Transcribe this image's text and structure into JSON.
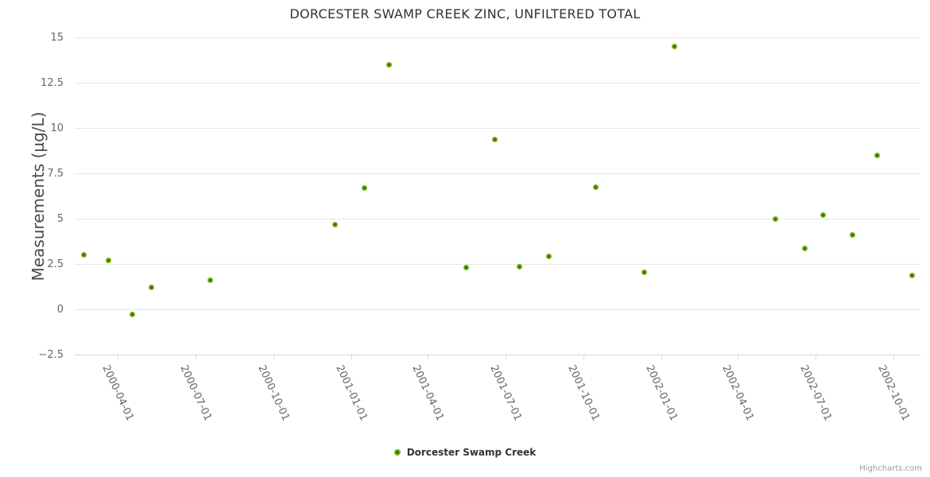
{
  "title": "DORCESTER SWAMP CREEK ZINC, UNFILTERED TOTAL",
  "credits": "Highcharts.com",
  "chart_data": {
    "type": "scatter",
    "title": "DORCESTER SWAMP CREEK ZINC, UNFILTERED TOTAL",
    "xlabel": "",
    "ylabel": "Measurements (µg/L)",
    "grid": "horizontal",
    "legend_position": "bottom-center",
    "ylim": [
      -2.5,
      15
    ],
    "yticks": [
      -2.5,
      0,
      2.5,
      5,
      7.5,
      10,
      12.5,
      15
    ],
    "ytick_labels": [
      "−2.5",
      "0",
      "2.5",
      "5",
      "7.5",
      "10",
      "12.5",
      "15"
    ],
    "xlim": [
      "2000-02-10",
      "2002-11-02"
    ],
    "xticks": [
      "2000-04-01",
      "2000-07-01",
      "2000-10-01",
      "2001-01-01",
      "2001-04-01",
      "2001-07-01",
      "2001-10-01",
      "2002-01-01",
      "2002-04-01",
      "2002-07-01",
      "2002-10-01"
    ],
    "series": [
      {
        "name": "Dorcester Swamp Creek",
        "color": "#7ab516",
        "marker_center_color": "#3e6e0a",
        "points": [
          {
            "date": "2000-02-21",
            "value": 3.0
          },
          {
            "date": "2000-03-21",
            "value": 2.7
          },
          {
            "date": "2000-04-18",
            "value": -0.3
          },
          {
            "date": "2000-05-10",
            "value": 1.2
          },
          {
            "date": "2000-07-19",
            "value": 1.6
          },
          {
            "date": "2000-12-13",
            "value": 4.65
          },
          {
            "date": "2001-01-16",
            "value": 6.7
          },
          {
            "date": "2001-02-14",
            "value": 13.5
          },
          {
            "date": "2001-05-16",
            "value": 2.3
          },
          {
            "date": "2001-06-19",
            "value": 9.35
          },
          {
            "date": "2001-07-18",
            "value": 2.35
          },
          {
            "date": "2001-08-21",
            "value": 2.9
          },
          {
            "date": "2001-10-16",
            "value": 6.75
          },
          {
            "date": "2001-12-12",
            "value": 2.05
          },
          {
            "date": "2002-01-16",
            "value": 14.5
          },
          {
            "date": "2002-05-15",
            "value": 5.0
          },
          {
            "date": "2002-06-19",
            "value": 3.35
          },
          {
            "date": "2002-07-10",
            "value": 5.2
          },
          {
            "date": "2002-08-14",
            "value": 4.1
          },
          {
            "date": "2002-09-12",
            "value": 8.5
          },
          {
            "date": "2002-10-23",
            "value": 1.85
          }
        ]
      }
    ]
  }
}
